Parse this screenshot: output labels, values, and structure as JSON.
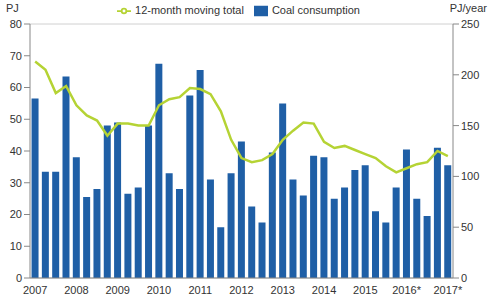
{
  "chart_data": {
    "type": "bar",
    "ylabel": "PJ",
    "y2label": "PJ/year",
    "categories": [
      "2007",
      null,
      null,
      null,
      "2008",
      null,
      null,
      null,
      "2009",
      null,
      null,
      null,
      "2010",
      null,
      null,
      null,
      "2011",
      null,
      null,
      null,
      "2012",
      null,
      null,
      null,
      "2013",
      null,
      null,
      null,
      "2014",
      null,
      null,
      null,
      "2015",
      null,
      null,
      null,
      "2016*",
      null,
      null,
      null,
      "2017*"
    ],
    "series": [
      {
        "name": "Coal consumption",
        "type": "bar",
        "color": "#1f5fa6",
        "values": [
          56.5,
          33.5,
          33.5,
          63.5,
          38,
          25.5,
          28,
          48,
          49,
          26.5,
          28.5,
          48,
          67.5,
          33,
          28,
          57.5,
          65.5,
          31,
          16,
          33,
          43,
          22.5,
          17.5,
          39.5,
          55,
          31,
          26,
          38.5,
          38,
          25,
          28.5,
          34,
          35.5,
          21,
          17.5,
          28.5,
          40.5,
          25,
          19.5,
          41,
          35.5
        ]
      },
      {
        "name": "12-month moving total",
        "type": "line",
        "color": "#b5d334",
        "axis": "y2",
        "values": [
          213,
          205,
          182,
          189,
          170,
          160,
          155,
          140,
          152,
          152,
          150,
          150,
          170,
          176,
          178,
          187,
          186,
          181,
          164,
          136,
          118,
          114,
          116,
          122,
          136,
          145,
          153,
          152,
          134,
          128,
          130,
          126,
          122,
          118,
          110,
          104,
          108,
          112,
          114,
          125,
          120
        ]
      }
    ],
    "ylim": [
      0,
      80
    ],
    "yticks": [
      0,
      10,
      20,
      30,
      40,
      50,
      60,
      70,
      80
    ],
    "y2lim": [
      0,
      250
    ],
    "y2ticks": [
      0,
      50,
      100,
      150,
      200,
      250
    ],
    "grid": true,
    "legend": "top"
  }
}
